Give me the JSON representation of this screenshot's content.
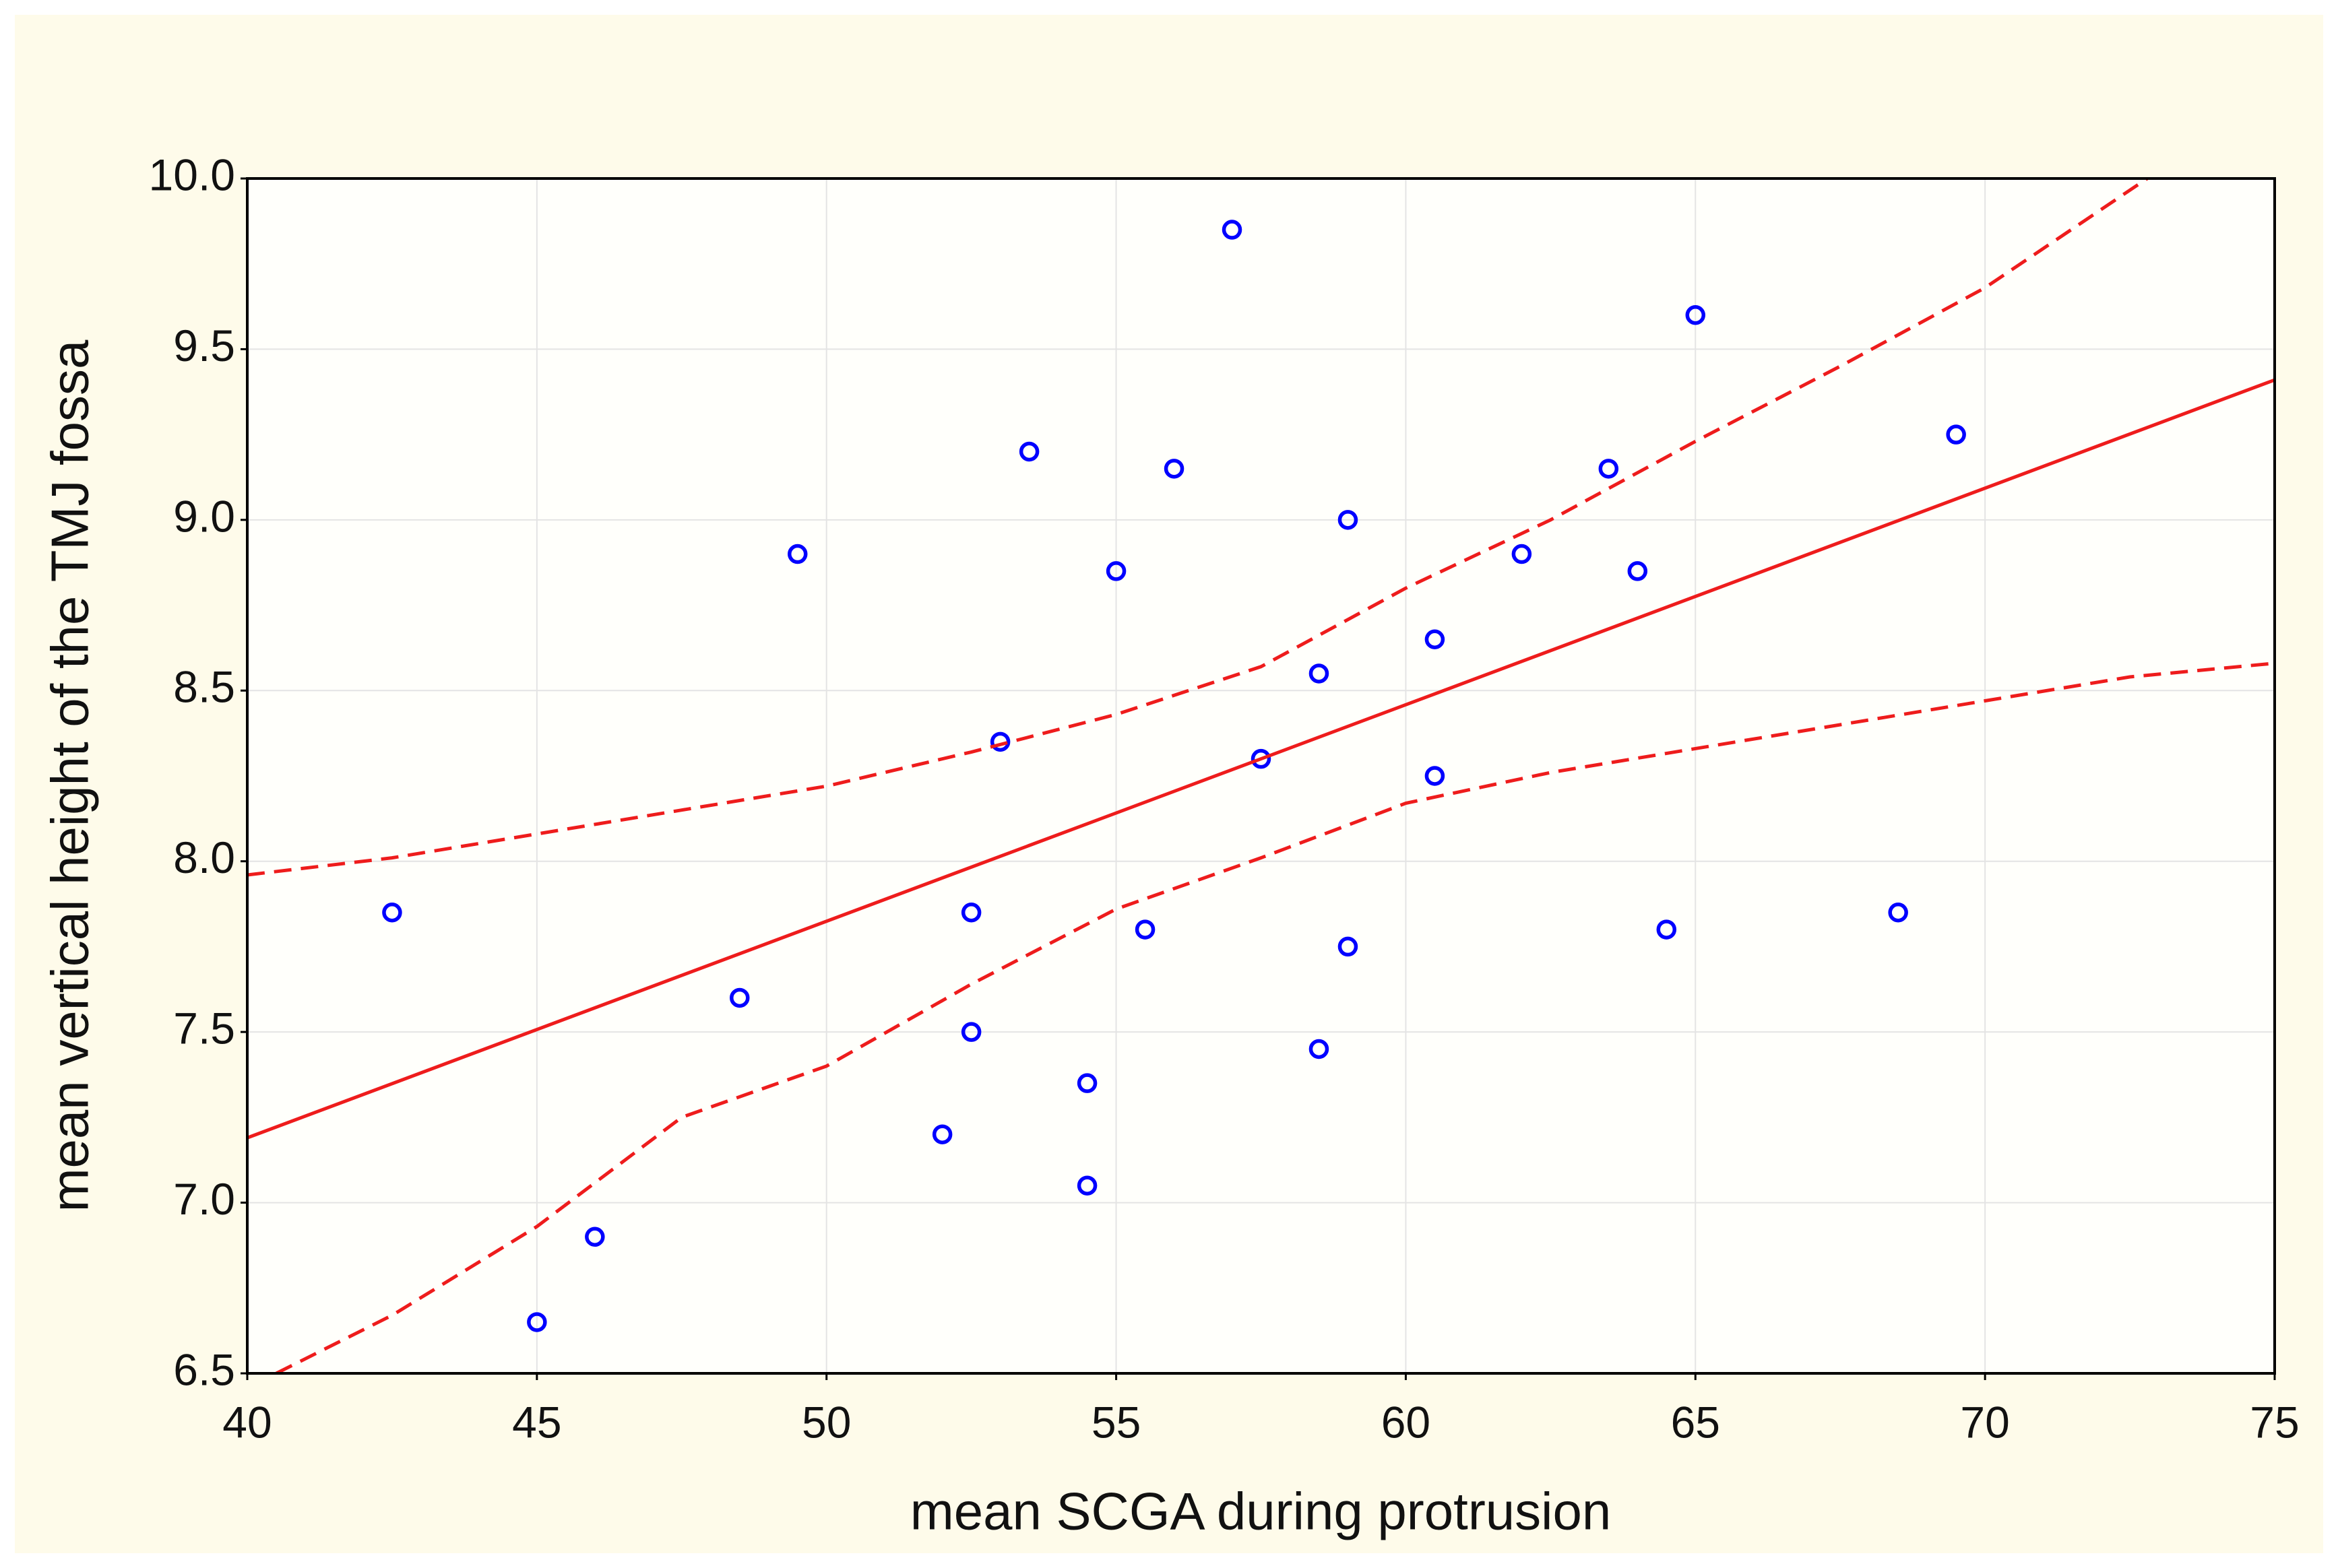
{
  "chart_data": {
    "type": "scatter",
    "xlabel": "mean SCGA during protrusion",
    "ylabel": "mean vertical height of the TMJ fossa",
    "xlim": [
      40,
      75
    ],
    "xticks": [
      40,
      45,
      50,
      55,
      60,
      65,
      70,
      75
    ],
    "ylim": [
      6.5,
      10
    ],
    "yticks": [
      {
        "value": 10,
        "label": "10.0"
      },
      9.5,
      {
        "value": 9,
        "label": "9.0"
      },
      8.5,
      {
        "value": 8,
        "label": "8.0"
      },
      7.5,
      {
        "value": 7,
        "label": "7.0"
      },
      6.5
    ],
    "grid": true,
    "series": [
      {
        "kind": "points",
        "color": "#0000ff",
        "x": [
          42.5,
          45,
          46,
          48.5,
          49.5,
          52,
          52.5,
          52.5,
          53,
          53.5,
          54.5,
          54.5,
          55,
          55.5,
          56,
          57,
          57.5,
          58.5,
          58.5,
          59,
          59,
          60.5,
          60.5,
          62,
          63.5,
          64,
          64.5,
          65,
          68.5,
          69.5
        ],
        "values": [
          7.85,
          6.65,
          6.9,
          7.6,
          8.9,
          7.2,
          7.85,
          7.5,
          8.35,
          9.2,
          7.35,
          7.05,
          8.85,
          7.8,
          9.15,
          9.85,
          8.3,
          8.55,
          7.45,
          9.0,
          7.75,
          8.65,
          8.25,
          8.9,
          9.15,
          8.85,
          7.8,
          9.6,
          7.85,
          9.25
        ]
      },
      {
        "kind": "line",
        "line_style": "solid",
        "color": "#ee1c1c",
        "x": [
          40,
          75
        ],
        "values": [
          7.19,
          9.41
        ]
      },
      {
        "kind": "line",
        "line_style": "dashed",
        "color": "#ee1c1c",
        "x": [
          40,
          42.5,
          45,
          47.5,
          50,
          52.5,
          55,
          57.5,
          60,
          62.5,
          65,
          67.5,
          70,
          72.8
        ],
        "values": [
          7.96,
          8.01,
          8.08,
          8.15,
          8.22,
          8.32,
          8.43,
          8.57,
          8.8,
          9.0,
          9.23,
          9.45,
          9.68,
          10.0
        ]
      },
      {
        "kind": "line",
        "line_style": "dashed",
        "color": "#ee1c1c",
        "x": [
          40.5,
          42.5,
          45,
          47.5,
          50,
          52.5,
          55,
          57.5,
          60,
          62.5,
          65,
          67.5,
          70,
          72.5,
          75
        ],
        "values": [
          6.5,
          6.67,
          6.93,
          7.25,
          7.4,
          7.64,
          7.86,
          8.01,
          8.17,
          8.26,
          8.33,
          8.4,
          8.47,
          8.54,
          8.58
        ]
      }
    ]
  }
}
